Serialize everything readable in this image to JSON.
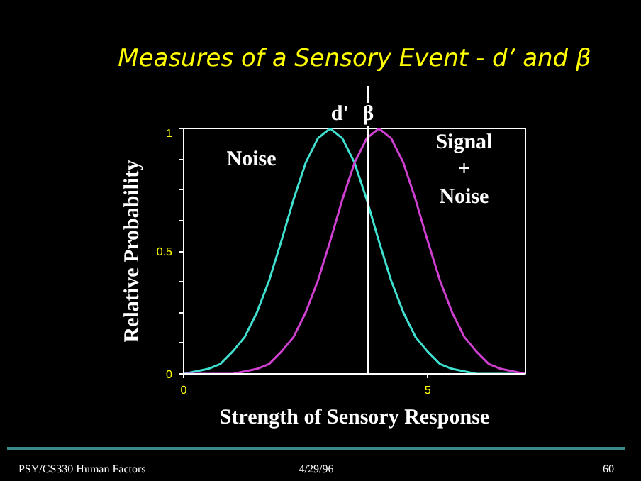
{
  "chart_data": {
    "type": "line",
    "title": "Measures of a Sensory Event - d’ and β",
    "xlabel": "Strength of Sensory Response",
    "ylabel": "Relative Probability",
    "x": [
      0,
      0.25,
      0.5,
      0.75,
      1,
      1.25,
      1.5,
      1.75,
      2,
      2.25,
      2.5,
      2.75,
      3,
      3.25,
      3.5,
      3.75,
      4,
      4.25,
      4.5,
      4.75,
      5,
      5.25,
      5.5,
      5.75,
      6,
      6.25,
      6.5,
      6.75,
      7
    ],
    "series": [
      {
        "name": "Noise",
        "color": "#40e0d0",
        "values": [
          0,
          0.01,
          0.02,
          0.04,
          0.09,
          0.15,
          0.25,
          0.38,
          0.54,
          0.71,
          0.86,
          0.96,
          1,
          0.96,
          0.86,
          0.71,
          0.54,
          0.38,
          0.25,
          0.15,
          0.09,
          0.04,
          0.02,
          0.01,
          0,
          0,
          0,
          0,
          0
        ]
      },
      {
        "name": "Signal + Noise",
        "color": "#d040d0",
        "values": [
          0,
          0,
          0,
          0,
          0,
          0.01,
          0.02,
          0.04,
          0.09,
          0.15,
          0.25,
          0.38,
          0.54,
          0.71,
          0.86,
          0.96,
          1,
          0.96,
          0.86,
          0.71,
          0.54,
          0.38,
          0.25,
          0.15,
          0.09,
          0.04,
          0.02,
          0.01,
          0
        ]
      }
    ],
    "xlim": [
      0,
      7
    ],
    "ylim": [
      0,
      1
    ],
    "xticks": [
      0,
      5
    ],
    "yticks": [
      0,
      {
        "value": 0.125,
        "label": null
      },
      {
        "value": 0.25,
        "label": null
      },
      {
        "value": 0.375,
        "label": null
      },
      0.5,
      {
        "value": 0.625,
        "label": null
      },
      {
        "value": 0.75,
        "label": null
      },
      {
        "value": 0.875,
        "label": null
      },
      1
    ],
    "ref_lines": [
      {
        "axis": "x",
        "value": 3.78,
        "color": "#ffffff"
      }
    ],
    "annotations": [
      {
        "text": "d'",
        "x": 3.2,
        "y": 1
      },
      {
        "text": "β",
        "x": 3.78,
        "y": 1
      },
      "PSY/CS330 Human Factors",
      "4/29/96",
      "60"
    ],
    "grid": false,
    "line_style": "solid",
    "marker": "none"
  }
}
